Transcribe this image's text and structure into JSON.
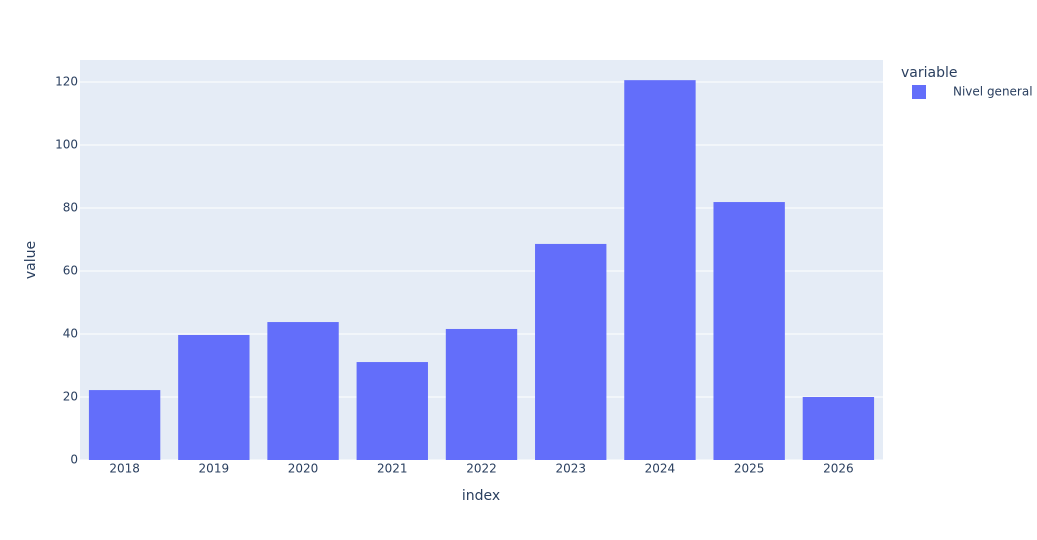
{
  "chart_data": {
    "type": "bar",
    "x_label": "index",
    "y_label": "value",
    "legend_title": "variable",
    "categories": [
      "2018",
      "2019",
      "2020",
      "2021",
      "2022",
      "2023",
      "2024",
      "2025",
      "2026"
    ],
    "series": [
      {
        "name": "Nivel general",
        "color": "#636efa",
        "values": [
          22.2,
          39.7,
          43.8,
          31.1,
          41.6,
          68.6,
          120.6,
          81.9,
          20.0
        ]
      }
    ],
    "ylim": [
      0,
      127
    ],
    "yticks": [
      0,
      20,
      40,
      60,
      80,
      100,
      120
    ],
    "grid": true
  }
}
